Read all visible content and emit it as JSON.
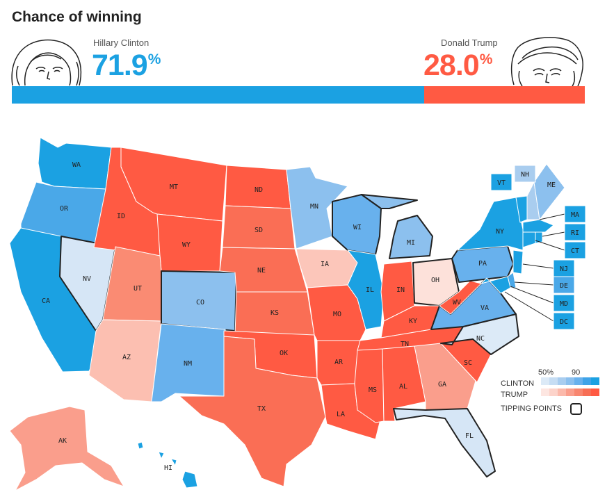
{
  "header": {
    "title": "Chance of winning"
  },
  "clinton": {
    "name": "Hillary Clinton",
    "pct": "71.9",
    "pct_value": 71.9,
    "color": "#1ba1e2"
  },
  "trump": {
    "name": "Donald Trump",
    "pct": "28.0",
    "pct_value": 28.0,
    "color": "#ff5a43"
  },
  "pct_sign": "%",
  "states": {
    "WA": "WA",
    "OR": "OR",
    "CA": "CA",
    "NV": "NV",
    "ID": "ID",
    "MT": "MT",
    "WY": "WY",
    "UT": "UT",
    "AZ": "AZ",
    "CO": "CO",
    "NM": "NM",
    "ND": "ND",
    "SD": "SD",
    "NE": "NE",
    "KS": "KS",
    "OK": "OK",
    "TX": "TX",
    "MN": "MN",
    "IA": "IA",
    "MO": "MO",
    "AR": "AR",
    "LA": "LA",
    "WI": "WI",
    "IL": "IL",
    "MI": "MI",
    "IN": "IN",
    "OH": "OH",
    "KY": "KY",
    "TN": "TN",
    "MS": "MS",
    "AL": "AL",
    "GA": "GA",
    "FL": "FL",
    "SC": "SC",
    "NC": "NC",
    "VA": "VA",
    "WV": "WV",
    "PA": "PA",
    "NY": "NY",
    "ME": "ME",
    "AK": "AK",
    "HI": "HI",
    "VT": "VT",
    "NH": "NH",
    "MA": "MA",
    "RI": "RI",
    "CT": "CT",
    "NJ": "NJ",
    "DE": "DE",
    "MD": "MD",
    "DC": "DC"
  },
  "legend": {
    "low": "50%",
    "high": "90",
    "clinton_label": "CLINTON",
    "trump_label": "TRUMP",
    "tipping_label": "TIPPING POINTS",
    "clinton_scale": [
      "#dceaf7",
      "#c6ddf3",
      "#a9cdef",
      "#8cc0ee",
      "#68b1ed",
      "#3fa3e8",
      "#1ba1e2"
    ],
    "trump_scale": [
      "#fde6e1",
      "#fcd3ca",
      "#fbb9ab",
      "#fa9e8c",
      "#f8866f",
      "#f76e55",
      "#ff5a43"
    ]
  }
}
